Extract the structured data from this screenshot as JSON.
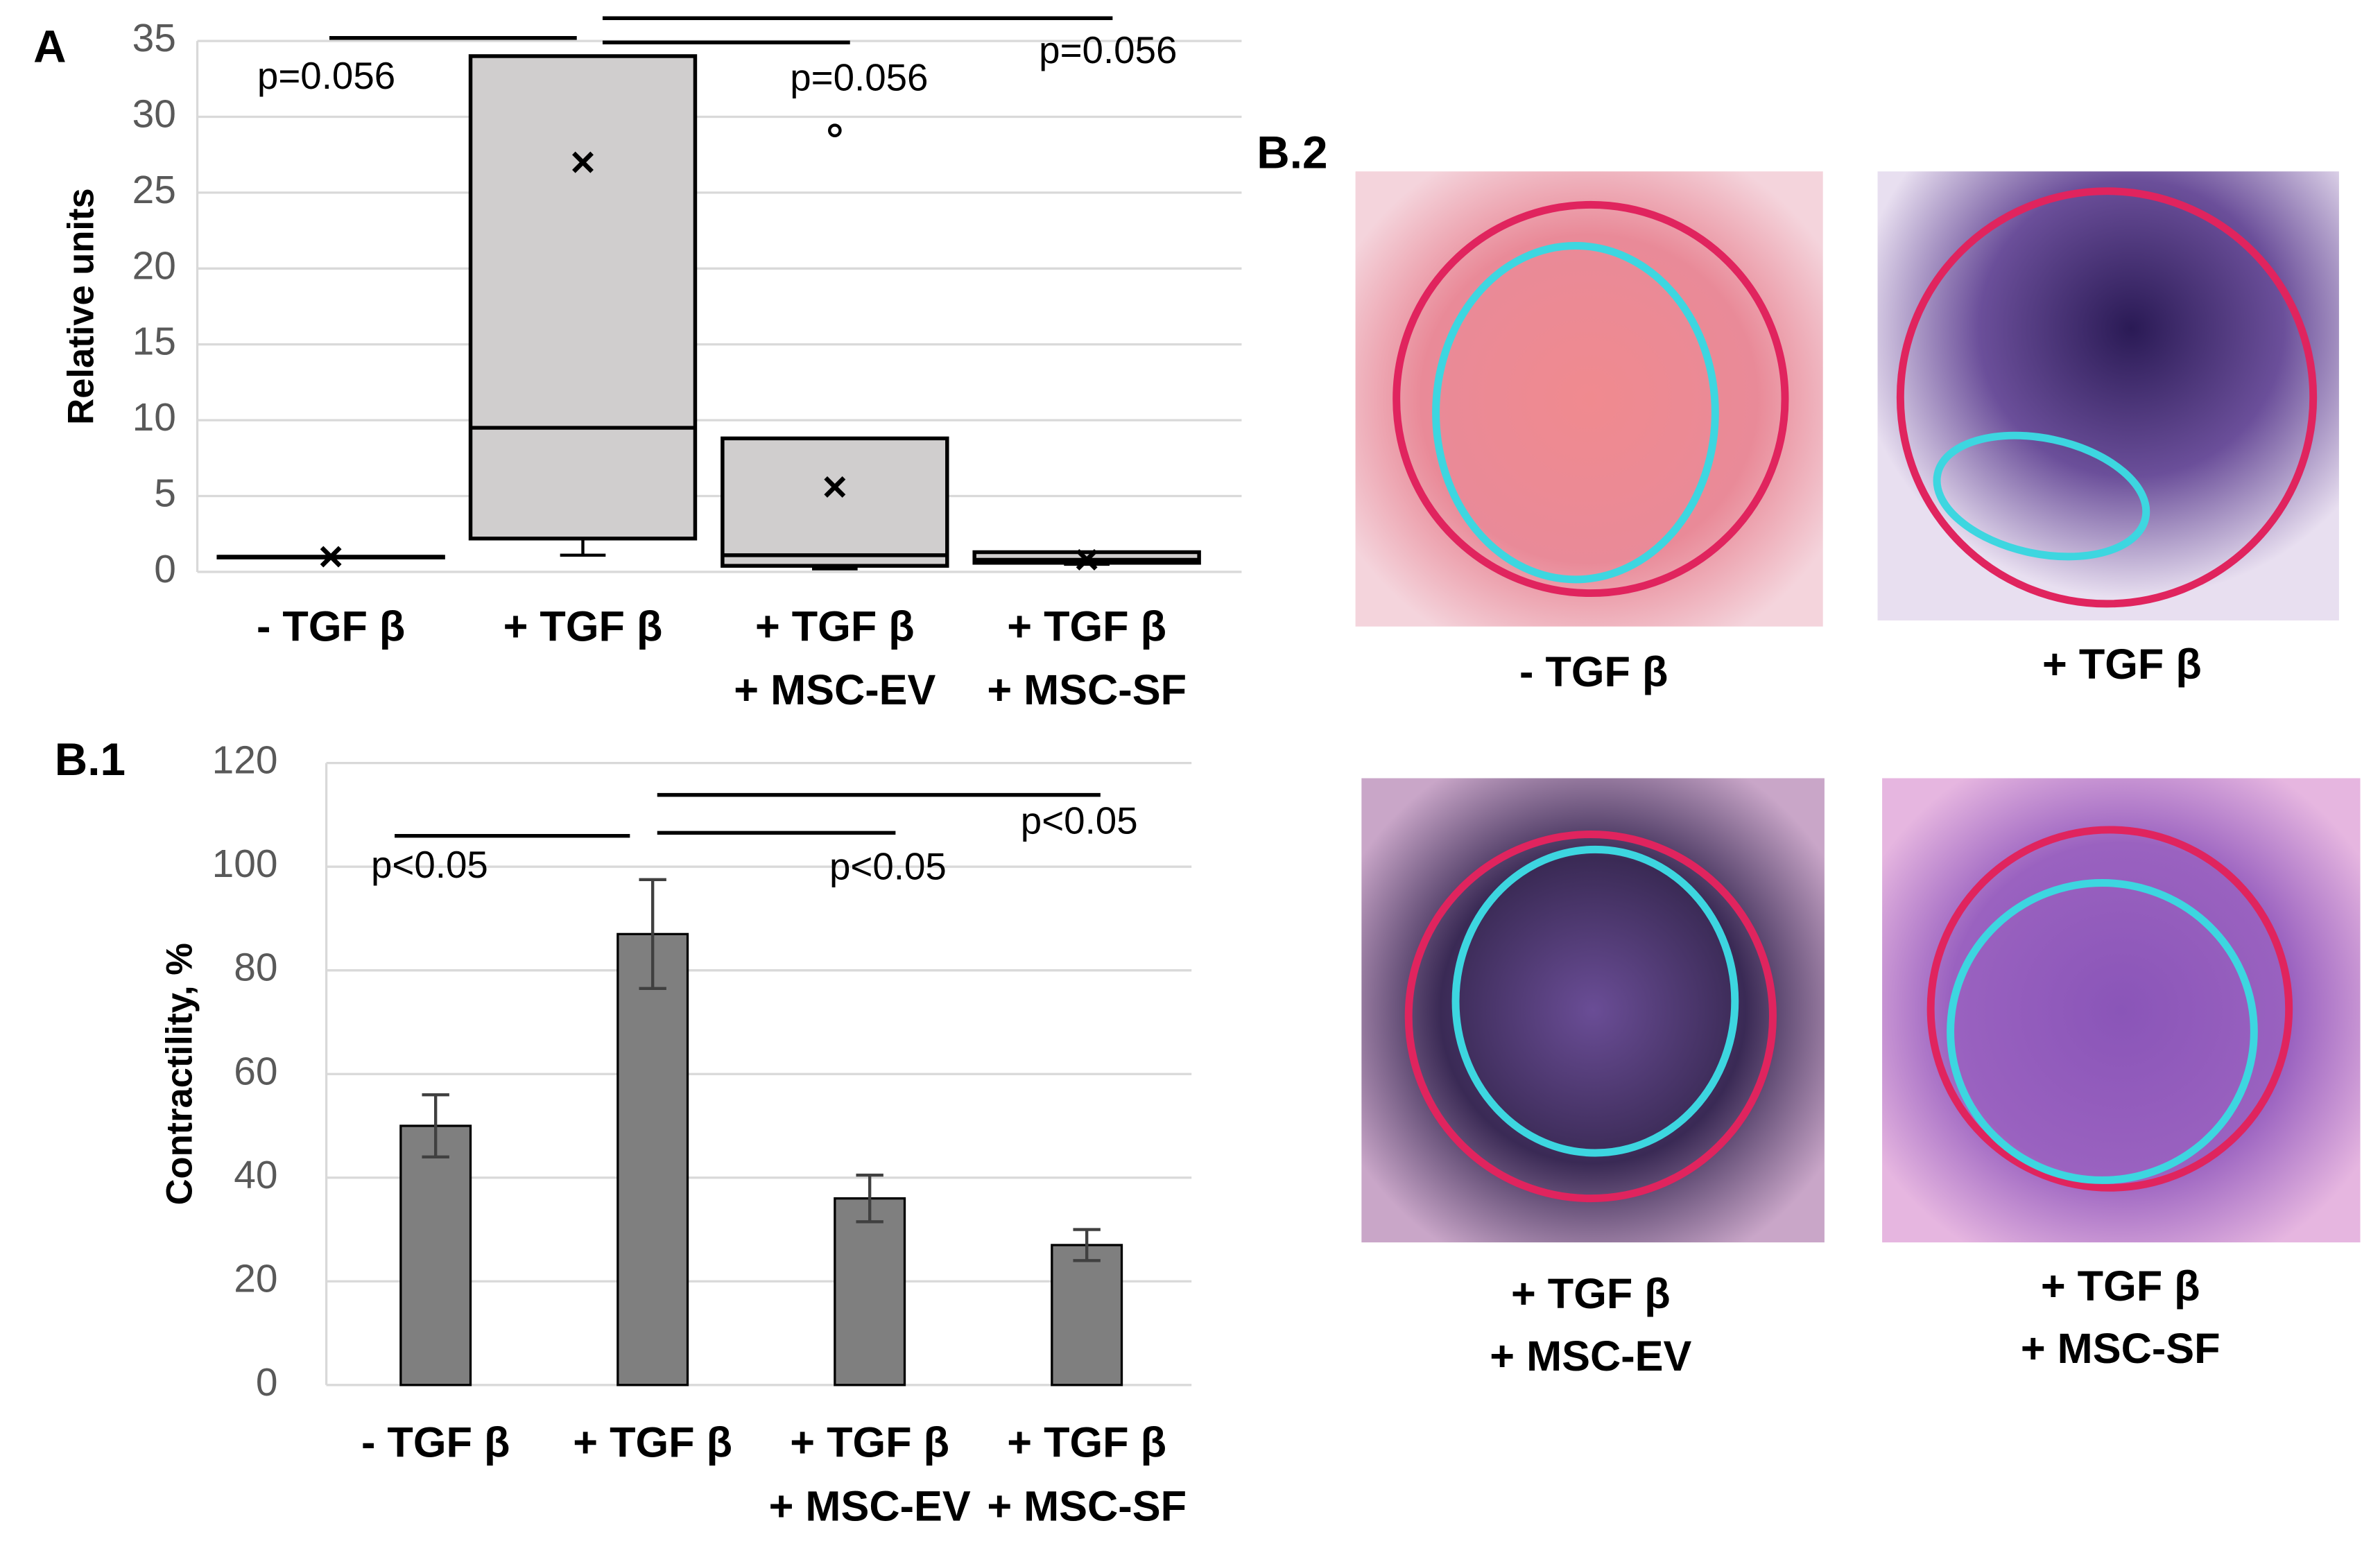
{
  "chart_data": [
    {
      "type": "box",
      "panel_label": "A",
      "y_label": "Relative units",
      "categories": [
        [
          "- TGF β"
        ],
        [
          "+ TGF β"
        ],
        [
          "+ TGF β",
          "+ MSC-EV"
        ],
        [
          "+ TGF β",
          "+ MSC-SF"
        ]
      ],
      "boxes": [
        {
          "min": 1,
          "q1": 1,
          "median": 1,
          "q3": 1,
          "max": 1,
          "mean": 1,
          "outliers": []
        },
        {
          "min": 1.1,
          "q1": 2.2,
          "median": 9.5,
          "q3": 34,
          "max": 34,
          "mean": 27,
          "outliers": []
        },
        {
          "min": 0.2,
          "q1": 0.4,
          "median": 1.1,
          "q3": 8.8,
          "max": 8.8,
          "mean": 5.6,
          "outliers": [
            29.1
          ]
        },
        {
          "min": 0.5,
          "q1": 0.6,
          "median": 0.8,
          "q3": 1.3,
          "max": 1.3,
          "mean": 0.8,
          "outliers": []
        }
      ],
      "color": "#d0cece",
      "ylim": [
        0,
        35
      ],
      "yticks": [
        0,
        5,
        10,
        15,
        20,
        25,
        30,
        35
      ],
      "grid": true,
      "annotations": [
        "p=0.056",
        "p=0.056",
        "p=0.056"
      ]
    },
    {
      "type": "bar",
      "panel_label": "B.1",
      "y_label": "Contractility, %",
      "categories": [
        [
          "- TGF β"
        ],
        [
          "+ TGF β"
        ],
        [
          "+ TGF β",
          "+ MSC-EV"
        ],
        [
          "+ TGF β",
          "+ MSC-SF"
        ]
      ],
      "values": [
        50,
        87,
        36,
        27
      ],
      "errors": [
        6,
        10.5,
        4.5,
        3
      ],
      "color": "#7f7f7f",
      "ylim": [
        0,
        120
      ],
      "yticks": [
        0,
        20,
        40,
        60,
        80,
        100,
        120
      ],
      "grid": true,
      "annotations": [
        "p<0.05",
        "p<0.05",
        "p<0.05"
      ]
    }
  ],
  "panel_b2": {
    "panel_label": "B.2",
    "images": [
      {
        "caption": [
          "- TGF β"
        ]
      },
      {
        "caption": [
          "+ TGF β"
        ]
      },
      {
        "caption": [
          "+ TGF β",
          "+ MSC-EV"
        ]
      },
      {
        "caption": [
          "+ TGF β",
          "+ MSC-SF"
        ]
      }
    ]
  }
}
